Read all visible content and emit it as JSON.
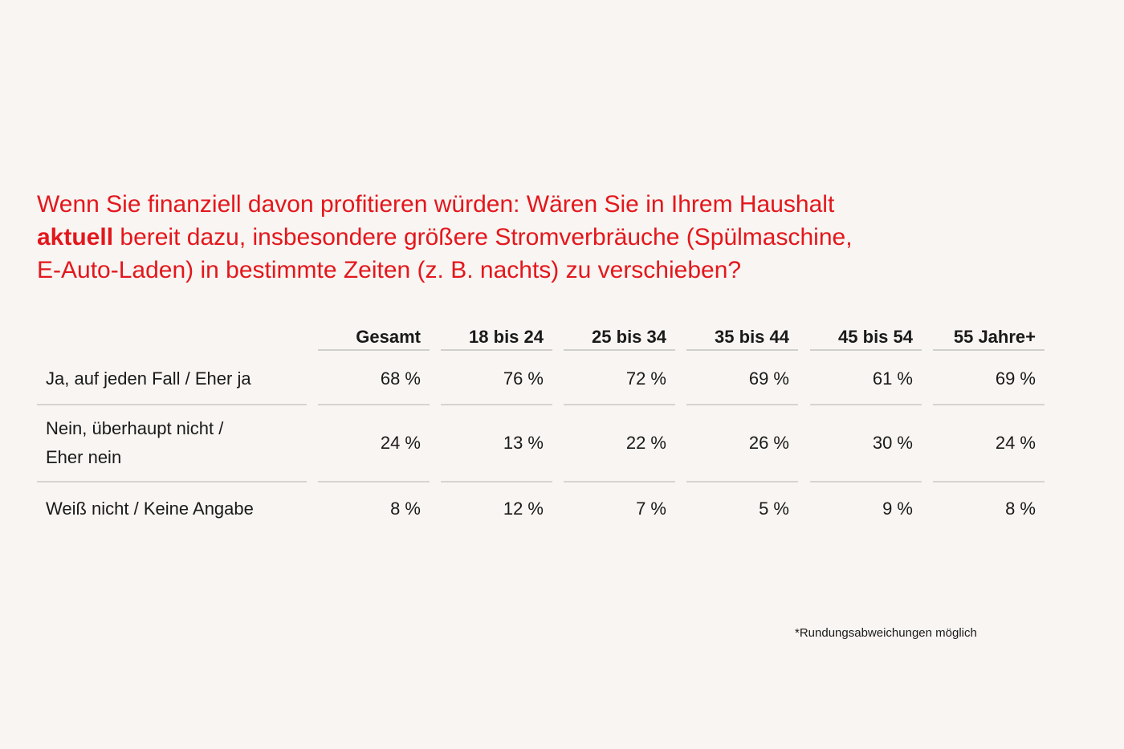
{
  "question": {
    "line1": "Wenn Sie finanziell davon profitieren würden: Wären Sie in Ihrem Haushalt",
    "line2_bold": "aktuell",
    "line2_rest": " bereit dazu, insbesondere größere Stromverbräuche (Spülmaschine,",
    "line3": "E-Auto-Laden) in bestimmte Zeiten (z. B. nachts) zu verschieben?"
  },
  "colors": {
    "accent": "#e3171c",
    "text": "#1a1a1a",
    "background": "#f8f5f2",
    "rule": "#d6d3d0"
  },
  "chart_data": {
    "type": "table",
    "columns": [
      "Gesamt",
      "18 bis 24",
      "25 bis 34",
      "35 bis 44",
      "45 bis 54",
      "55 Jahre+"
    ],
    "rows": [
      {
        "label": "Ja, auf jeden Fall / Eher ja",
        "label_lines": [
          "Ja, auf jeden Fall / Eher ja"
        ],
        "values": [
          68,
          76,
          72,
          69,
          61,
          69
        ],
        "display": [
          "68 %",
          "76 %",
          "72 %",
          "69 %",
          "61 %",
          "69 %"
        ]
      },
      {
        "label": "Nein, überhaupt nicht / Eher nein",
        "label_lines": [
          "Nein, überhaupt nicht /",
          "Eher nein"
        ],
        "values": [
          24,
          13,
          22,
          26,
          30,
          24
        ],
        "display": [
          "24 %",
          "13 %",
          "22 %",
          "26 %",
          "30 %",
          "24 %"
        ]
      },
      {
        "label": "Weiß nicht / Keine Angabe",
        "label_lines": [
          "Weiß nicht / Keine Angabe"
        ],
        "values": [
          8,
          12,
          7,
          5,
          9,
          8
        ],
        "display": [
          "8 %",
          "12 %",
          "7 %",
          "5 %",
          "9 %",
          "8 %"
        ]
      }
    ],
    "unit": "%"
  },
  "footnote": "*Rundungsabweichungen möglich"
}
